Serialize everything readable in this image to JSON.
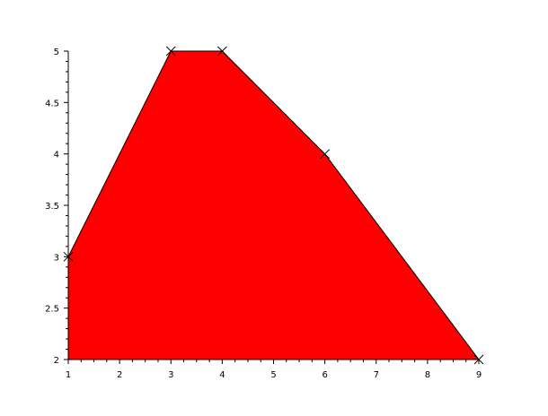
{
  "chart_data": {
    "type": "area",
    "title": "",
    "xlabel": "",
    "ylabel": "",
    "x": [
      1,
      3,
      4,
      6,
      9
    ],
    "y": [
      3,
      5,
      5,
      4,
      2
    ],
    "baseline": 2,
    "xlim": [
      1,
      9
    ],
    "ylim": [
      2,
      5
    ],
    "x_ticks": [
      1,
      2,
      3,
      4,
      5,
      6,
      7,
      8,
      9
    ],
    "y_ticks": [
      2,
      2.5,
      3,
      3.5,
      4,
      4.5,
      5
    ],
    "x_tick_labels": [
      "1",
      "2",
      "3",
      "4",
      "5",
      "6",
      "7",
      "8",
      "9"
    ],
    "y_tick_labels": [
      "2",
      "2.5",
      "3",
      "3.5",
      "4",
      "4.5",
      "5"
    ],
    "grid": false,
    "legend": "none",
    "fill_color": "#ff0000",
    "line_color": "#000000",
    "marker": "x"
  }
}
